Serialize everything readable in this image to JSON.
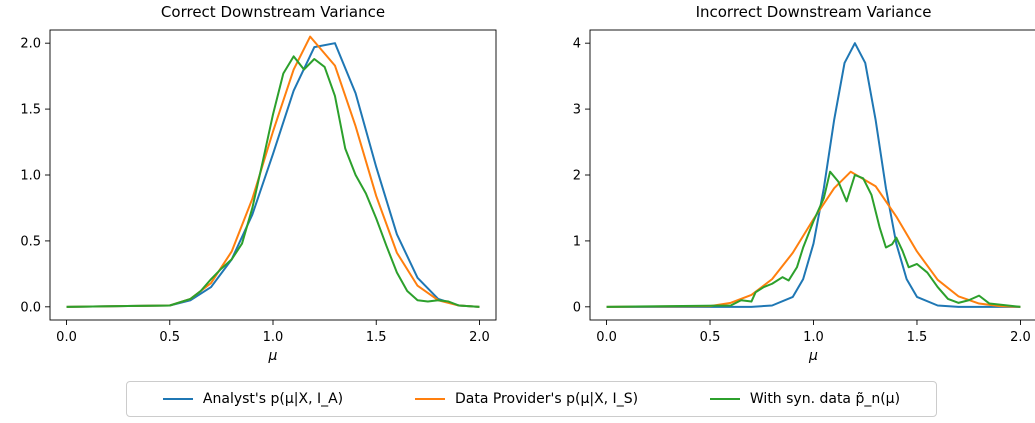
{
  "colors": {
    "analyst": "#1f77b4",
    "provider": "#ff7f0e",
    "synthetic": "#2ca02c"
  },
  "legend": {
    "analyst": "Analyst's p(μ|X, I_A)",
    "provider": "Data Provider's p(μ|X, I_S)",
    "synthetic": "With syn. data p̃_n(μ)"
  },
  "chart_data": [
    {
      "type": "line",
      "title": "Correct Downstream Variance",
      "xlabel": "μ",
      "ylabel": "",
      "xlim": [
        -0.08,
        2.08
      ],
      "ylim": [
        -0.1,
        2.1
      ],
      "xticks": [
        "0.0",
        "0.5",
        "1.0",
        "1.5",
        "2.0"
      ],
      "yticks": [
        "0.0",
        "0.5",
        "1.0",
        "1.5",
        "2.0"
      ],
      "xtick_values": [
        0.0,
        0.5,
        1.0,
        1.5,
        2.0
      ],
      "ytick_values": [
        0.0,
        0.5,
        1.0,
        1.5,
        2.0
      ],
      "grid": false,
      "legend_position": "bottom-center",
      "series": [
        {
          "name": "Analyst's p(μ|X, I_A)",
          "color_key": "analyst",
          "x": [
            0.0,
            0.5,
            0.6,
            0.7,
            0.8,
            0.9,
            1.0,
            1.1,
            1.2,
            1.3,
            1.4,
            1.5,
            1.6,
            1.7,
            1.8,
            1.9,
            2.0
          ],
          "y": [
            0.0,
            0.01,
            0.05,
            0.15,
            0.36,
            0.7,
            1.16,
            1.64,
            1.97,
            2.0,
            1.62,
            1.06,
            0.55,
            0.22,
            0.06,
            0.01,
            0.0
          ]
        },
        {
          "name": "Data Provider's p(μ|X, I_S)",
          "color_key": "provider",
          "x": [
            0.0,
            0.5,
            0.6,
            0.7,
            0.8,
            0.9,
            1.0,
            1.1,
            1.18,
            1.3,
            1.4,
            1.5,
            1.6,
            1.7,
            1.8,
            1.9,
            2.0
          ],
          "y": [
            0.0,
            0.01,
            0.06,
            0.18,
            0.42,
            0.82,
            1.33,
            1.8,
            2.05,
            1.83,
            1.37,
            0.84,
            0.41,
            0.16,
            0.05,
            0.01,
            0.0
          ]
        },
        {
          "name": "With syn. data p̃_n(μ)",
          "color_key": "synthetic",
          "x": [
            0.0,
            0.5,
            0.6,
            0.65,
            0.7,
            0.75,
            0.8,
            0.85,
            0.9,
            0.95,
            1.0,
            1.05,
            1.1,
            1.15,
            1.2,
            1.25,
            1.3,
            1.35,
            1.4,
            1.45,
            1.5,
            1.55,
            1.6,
            1.65,
            1.7,
            1.75,
            1.8,
            1.85,
            1.9,
            2.0
          ],
          "y": [
            0.0,
            0.01,
            0.06,
            0.12,
            0.21,
            0.29,
            0.36,
            0.48,
            0.75,
            1.1,
            1.46,
            1.77,
            1.9,
            1.8,
            1.88,
            1.82,
            1.6,
            1.2,
            1.0,
            0.86,
            0.67,
            0.46,
            0.26,
            0.12,
            0.05,
            0.04,
            0.05,
            0.04,
            0.01,
            0.0
          ]
        }
      ]
    },
    {
      "type": "line",
      "title": "Incorrect Downstream Variance",
      "xlabel": "μ",
      "ylabel": "",
      "xlim": [
        -0.08,
        2.08
      ],
      "ylim": [
        -0.2,
        4.2
      ],
      "xticks": [
        "0.0",
        "0.5",
        "1.0",
        "1.5",
        "2.0"
      ],
      "yticks": [
        "0",
        "1",
        "2",
        "3",
        "4"
      ],
      "xtick_values": [
        0.0,
        0.5,
        1.0,
        1.5,
        2.0
      ],
      "ytick_values": [
        0,
        1,
        2,
        3,
        4
      ],
      "grid": false,
      "legend_position": "bottom-center",
      "series": [
        {
          "name": "Analyst's p(μ|X, I_A)",
          "color_key": "analyst",
          "x": [
            0.0,
            0.7,
            0.8,
            0.9,
            0.95,
            1.0,
            1.05,
            1.1,
            1.15,
            1.2,
            1.25,
            1.3,
            1.35,
            1.4,
            1.45,
            1.5,
            1.6,
            1.7,
            2.0
          ],
          "y": [
            0.0,
            0.0,
            0.02,
            0.15,
            0.42,
            0.96,
            1.8,
            2.84,
            3.7,
            4.0,
            3.7,
            2.84,
            1.8,
            0.96,
            0.42,
            0.15,
            0.02,
            0.0,
            0.0
          ]
        },
        {
          "name": "Data Provider's p(μ|X, I_S)",
          "color_key": "provider",
          "x": [
            0.0,
            0.5,
            0.6,
            0.7,
            0.8,
            0.9,
            1.0,
            1.1,
            1.18,
            1.3,
            1.4,
            1.5,
            1.6,
            1.7,
            1.8,
            1.9,
            2.0
          ],
          "y": [
            0.0,
            0.01,
            0.06,
            0.18,
            0.42,
            0.82,
            1.33,
            1.8,
            2.05,
            1.83,
            1.37,
            0.84,
            0.41,
            0.16,
            0.05,
            0.01,
            0.0
          ]
        },
        {
          "name": "With syn. data p̃_n(μ)",
          "color_key": "synthetic",
          "x": [
            0.0,
            0.6,
            0.65,
            0.7,
            0.72,
            0.76,
            0.8,
            0.85,
            0.88,
            0.92,
            0.95,
            1.0,
            1.05,
            1.08,
            1.12,
            1.16,
            1.2,
            1.24,
            1.28,
            1.32,
            1.35,
            1.38,
            1.4,
            1.43,
            1.46,
            1.5,
            1.55,
            1.6,
            1.65,
            1.7,
            1.75,
            1.8,
            1.85,
            2.0
          ],
          "y": [
            0.0,
            0.02,
            0.1,
            0.08,
            0.22,
            0.3,
            0.35,
            0.45,
            0.4,
            0.6,
            0.9,
            1.3,
            1.65,
            2.05,
            1.9,
            1.6,
            2.0,
            1.95,
            1.7,
            1.2,
            0.9,
            0.95,
            1.05,
            0.85,
            0.6,
            0.65,
            0.52,
            0.3,
            0.12,
            0.06,
            0.1,
            0.17,
            0.05,
            0.0
          ]
        }
      ]
    }
  ]
}
